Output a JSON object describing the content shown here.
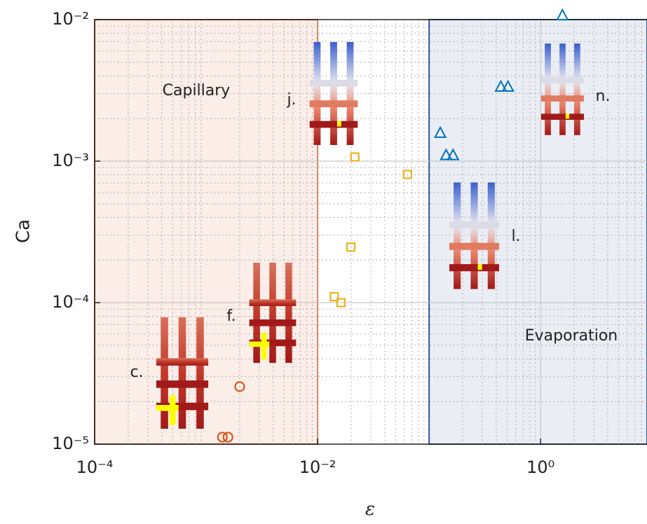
{
  "chart_data": {
    "type": "scatter",
    "x_label": "ε",
    "y_label": "Ca",
    "xlim": [
      0.0001,
      9
    ],
    "ylim": [
      1e-05,
      0.01
    ],
    "log_x": true,
    "log_y": true,
    "grid": true,
    "minor_grid": true,
    "xticks": [
      {
        "value": 0.0001,
        "label": "10⁻⁴"
      },
      {
        "value": 0.01,
        "label": "10⁻²"
      },
      {
        "value": 1,
        "label": "10⁰"
      }
    ],
    "yticks": [
      {
        "value": 1e-05,
        "label": "10⁻⁵"
      },
      {
        "value": 0.0001,
        "label": "10⁻⁴"
      },
      {
        "value": 0.001,
        "label": "10⁻³"
      },
      {
        "value": 0.01,
        "label": "10⁻²"
      }
    ],
    "regions": [
      {
        "label": "Capillary",
        "x": [
          0.0001,
          0.01
        ],
        "color": "#d95319"
      },
      {
        "label": "Evaporation",
        "x": [
          0.1,
          9
        ],
        "color": "#2f5597"
      }
    ],
    "series": [
      {
        "marker": "circle",
        "color": "#d95319",
        "x": [
          0.0014,
          0.00157,
          0.002
        ],
        "values": [
          1.12e-05,
          1.12e-05,
          2.55e-05
        ]
      },
      {
        "marker": "square",
        "color": "#edb120",
        "x": [
          0.0141,
          0.0162,
          0.0199,
          0.0216,
          0.064
        ],
        "values": [
          0.00011,
          0.0001,
          0.000247,
          0.00107,
          0.000805
        ]
      },
      {
        "marker": "triangle",
        "color": "#0072bd",
        "x": [
          0.126,
          0.142,
          0.164,
          0.44,
          0.51,
          1.57
        ],
        "values": [
          0.00158,
          0.0011,
          0.0011,
          0.00335,
          0.00335,
          0.0107
        ]
      }
    ],
    "insets": [
      "c.",
      "f.",
      "j.",
      "l.",
      "n."
    ]
  }
}
